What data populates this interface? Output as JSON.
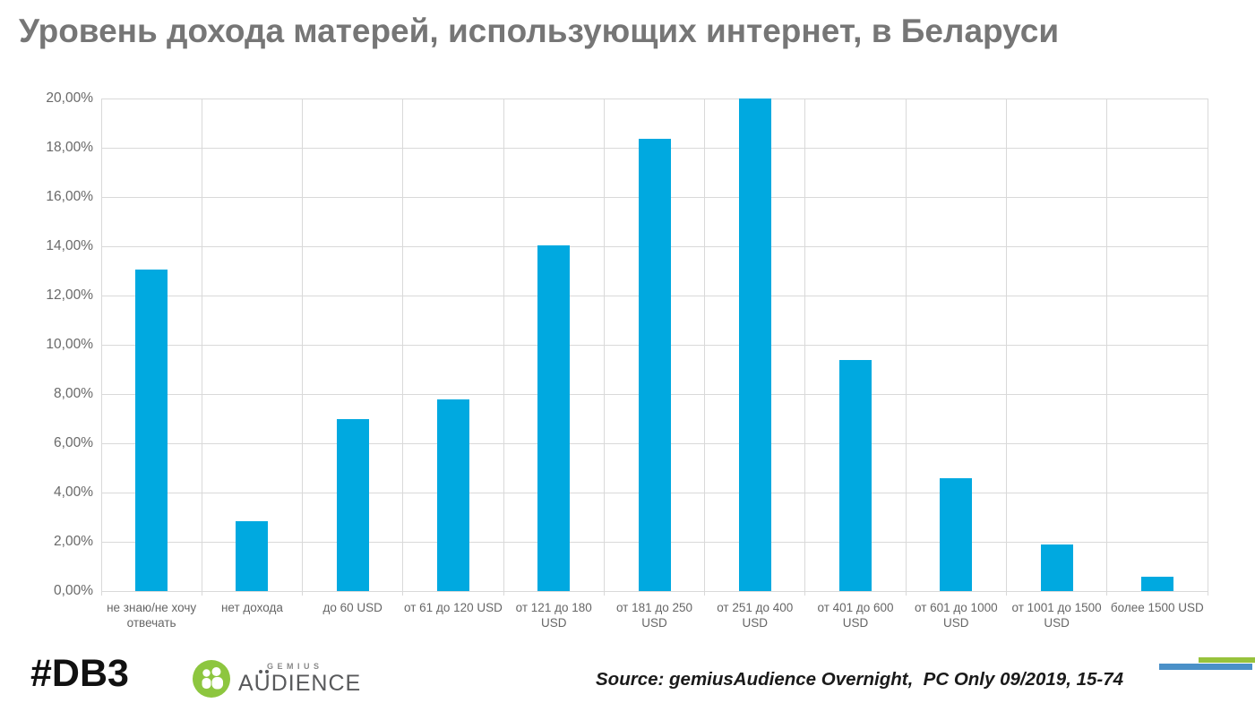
{
  "title": "Уровень дохода матерей, использующих интернет, в Беларуси",
  "chart_data": {
    "type": "bar",
    "title": "Уровень дохода матерей, использующих интернет, в Беларуси",
    "categories": [
      "не знаю/не хочу отвечать",
      "нет дохода",
      "до 60 USD",
      "от 61 до 120 USD",
      "от 121 до 180 USD",
      "от 181 до 250 USD",
      "от 251 до 400 USD",
      "от 401 до 600 USD",
      "от 601 до 1000 USD",
      "от 1001 до 1500 USD",
      "более 1500 USD"
    ],
    "values": [
      13.05,
      2.85,
      7.0,
      7.8,
      14.05,
      18.35,
      20.0,
      9.4,
      4.6,
      1.9,
      0.6
    ],
    "xlabel": "",
    "ylabel": "",
    "ylim": [
      0,
      20
    ],
    "ytick_step": 2,
    "ytick_labels": [
      "0,00%",
      "2,00%",
      "4,00%",
      "6,00%",
      "8,00%",
      "10,00%",
      "12,00%",
      "14,00%",
      "16,00%",
      "18,00%",
      "20,00%"
    ],
    "bar_color": "#00A9E0",
    "gridline_color": "#d9d9d9",
    "grid": true,
    "legend_position": "none"
  },
  "footer": {
    "hashtag": "#DB3",
    "logo": {
      "icon": "audience-people-icon",
      "icon_color": "#8DC63F",
      "brand_top": "GEMIUS",
      "brand_bottom": "AUDIENCE"
    },
    "source": "Source: gemiusAudience Overnight,  PC Only 09/2019, 15-74",
    "decor": {
      "green_bar_color": "#97C23C",
      "blue_bar_color": "#4A90C8"
    }
  }
}
